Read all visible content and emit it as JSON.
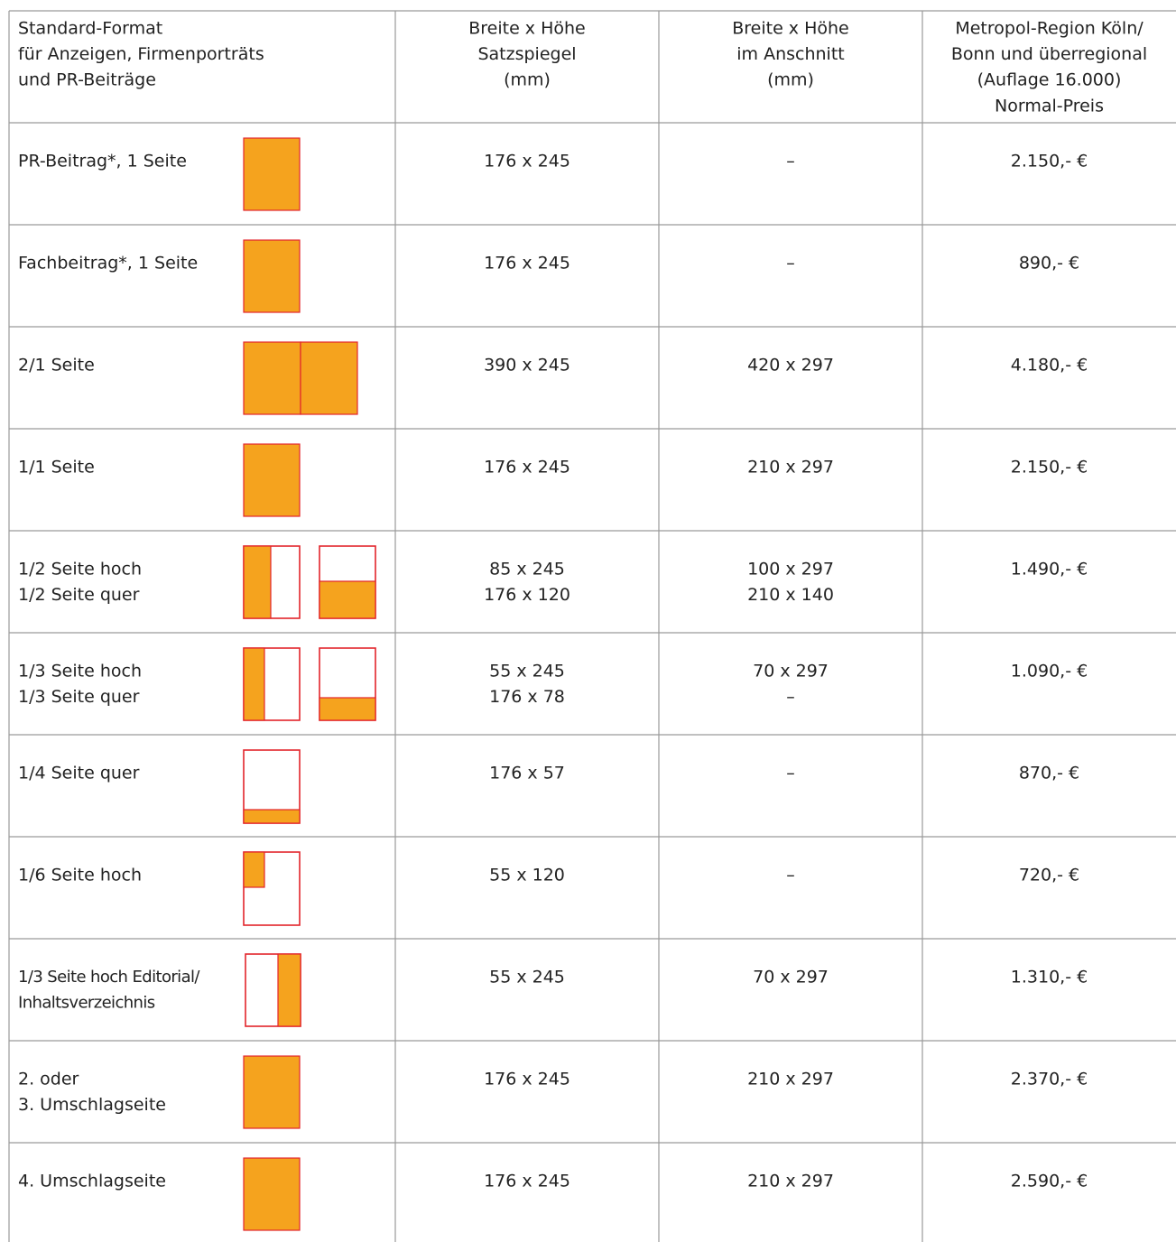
{
  "table": {
    "header": [
      [
        "Standard-Format",
        "für Anzeigen, Firmenporträts",
        "und PR-Beiträge"
      ],
      [
        "Breite x Höhe",
        "Satzspiegel",
        "(mm)"
      ],
      [
        "Breite x Höhe",
        "im Anschnitt",
        "(mm)"
      ],
      [
        "Metropol-Region Köln/",
        "Bonn und überregional",
        "(Auflage 16.000)",
        "Normal-Preis"
      ]
    ],
    "rows": [
      [
        [
          "PR-Beitrag*, 1 Seite"
        ],
        [
          "176 x 245"
        ],
        [
          "–"
        ],
        [
          "2.150,- €"
        ]
      ],
      [
        [
          "Fachbeitrag*, 1 Seite"
        ],
        [
          "176 x 245"
        ],
        [
          "–"
        ],
        [
          "890,- €"
        ]
      ],
      [
        [
          "2/1 Seite"
        ],
        [
          "390 x 245"
        ],
        [
          "420 x 297"
        ],
        [
          "4.180,- €"
        ]
      ],
      [
        [
          "1/1 Seite"
        ],
        [
          "176 x 245"
        ],
        [
          "210 x 297"
        ],
        [
          "2.150,- €"
        ]
      ],
      [
        [
          "1/2 Seite hoch",
          "1/2 Seite quer"
        ],
        [
          "85 x 245",
          "176 x 120"
        ],
        [
          "100 x 297",
          "210 x 140"
        ],
        [
          "1.490,- €"
        ]
      ],
      [
        [
          "1/3 Seite hoch",
          "1/3 Seite quer"
        ],
        [
          "55 x 245",
          "176 x 78"
        ],
        [
          "70 x 297",
          "–"
        ],
        [
          "1.090,- €"
        ]
      ],
      [
        [
          "1/4 Seite quer"
        ],
        [
          "176 x 57"
        ],
        [
          "–"
        ],
        [
          "870,- €"
        ]
      ],
      [
        [
          "1/6 Seite hoch"
        ],
        [
          "55 x 120"
        ],
        [
          "–"
        ],
        [
          "720,- €"
        ]
      ],
      [
        [
          "1/3 Seite hoch Editorial/",
          "Inhaltsverzeichnis"
        ],
        [
          "55 x 245"
        ],
        [
          "70 x 297"
        ],
        [
          "1.310,- €"
        ]
      ],
      [
        [
          "2. oder",
          "3. Umschlagseite"
        ],
        [
          "176 x 245"
        ],
        [
          "210 x 297"
        ],
        [
          "2.370,- €"
        ]
      ],
      [
        [
          "4. Umschlagseite"
        ],
        [
          "176 x 245"
        ],
        [
          "210 x 297"
        ],
        [
          "2.590,- €"
        ]
      ]
    ]
  }
}
